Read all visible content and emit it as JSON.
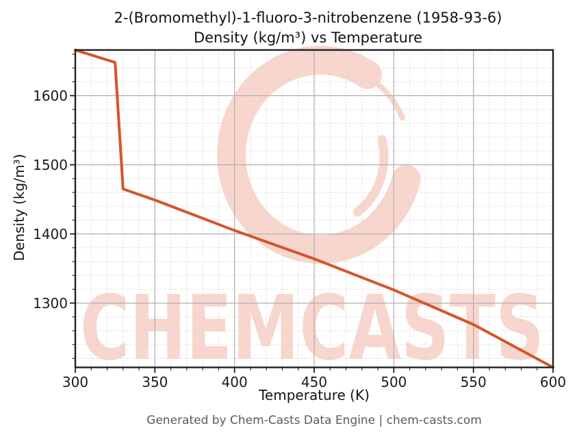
{
  "chart_data": {
    "type": "line",
    "title": "2-(Bromomethyl)-1-fluoro-3-nitrobenzene (1958-93-6)",
    "subtitle": "Density (kg/m³) vs Temperature",
    "xlabel": "Temperature (K)",
    "ylabel": "Density (kg/m³)",
    "xlim": [
      300,
      600
    ],
    "ylim": [
      1207,
      1666
    ],
    "xticks": [
      300,
      350,
      400,
      450,
      500,
      550,
      600
    ],
    "yticks": [
      1300,
      1400,
      1500,
      1600
    ],
    "x_minor_step": 10,
    "y_minor_step": 20,
    "grid": true,
    "legend": "none",
    "series": [
      {
        "name": "density",
        "color": "#d4552a",
        "points": [
          [
            300,
            1666
          ],
          [
            325,
            1648
          ],
          [
            330,
            1465
          ],
          [
            350,
            1449
          ],
          [
            400,
            1405
          ],
          [
            450,
            1364
          ],
          [
            500,
            1319
          ],
          [
            550,
            1269
          ],
          [
            600,
            1207
          ]
        ]
      }
    ]
  },
  "watermark": {
    "text": "CHEMCASTS",
    "logo": "c-swoosh-logo",
    "color": "#f8d6cd"
  },
  "footer": {
    "text": "Generated by Chem-Casts Data Engine | chem-casts.com"
  },
  "colors": {
    "line": "#d4552a",
    "major_grid": "#b0b0b0",
    "minor_grid": "#d6d6d6",
    "spine": "#1f1f1f",
    "tick_label": "#1a1a1a",
    "footer_text": "#595959"
  }
}
